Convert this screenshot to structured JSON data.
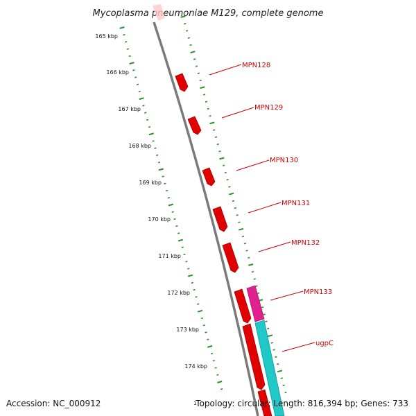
{
  "title": "Mycoplasma pneumoniae M129, complete genome",
  "accession": "Accession: NC_000912",
  "summary": "Topology: circular; Length: 816,394 bp; Genes: 733",
  "footer_mark": "1",
  "kbp_labels": [
    "165 kbp",
    "166 kbp",
    "167 kbp",
    "168 kbp",
    "169 kbp",
    "170 kbp",
    "171 kbp",
    "172 kbp",
    "173 kbp",
    "174 kbp"
  ],
  "genes": [
    "MPN128",
    "MPN129",
    "MPN130",
    "MPN131",
    "MPN132",
    "MPN133",
    "ugpC"
  ],
  "colors": {
    "backbone": "#7a7a7a",
    "ticks": "#2e8b2e",
    "gene": "#e00000",
    "gene_shadow": "#a30000",
    "magenta": "#e0208c",
    "cyan": "#20c8c8",
    "label": "#cc0000"
  }
}
